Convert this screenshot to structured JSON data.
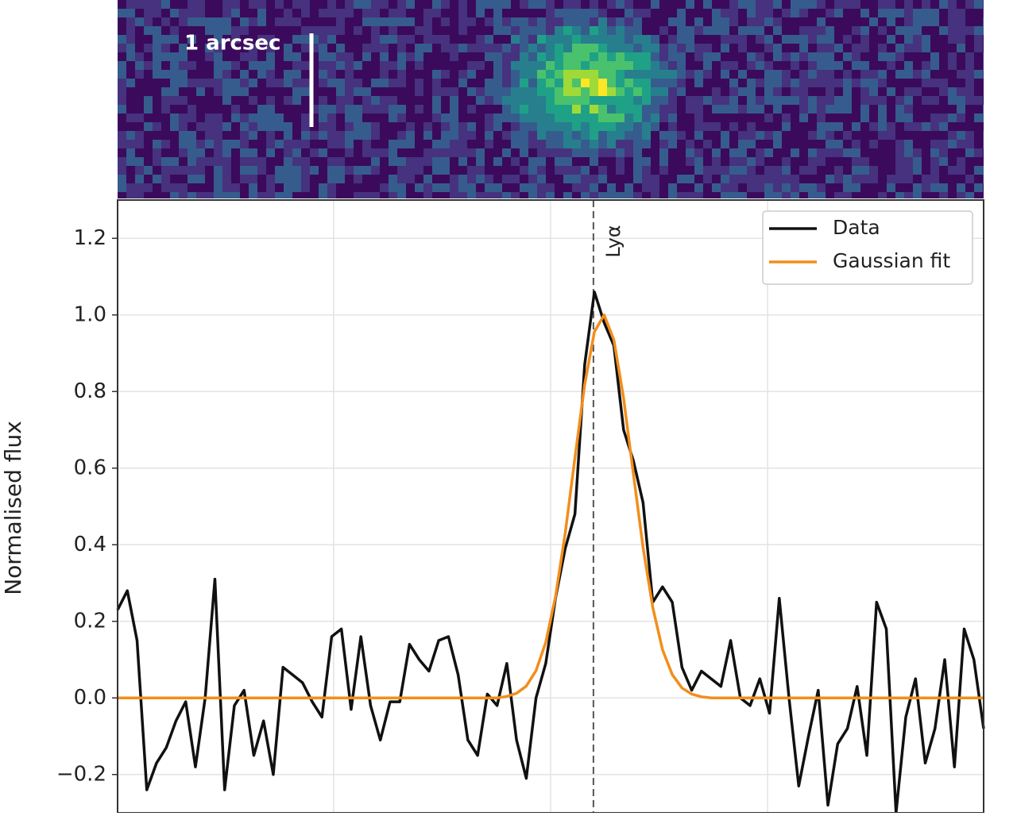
{
  "image": {
    "scale_label": "1 arcsec"
  },
  "chart_data": {
    "type": "line",
    "ylabel": "Normalised flux",
    "xlim": [
      0,
      89
    ],
    "xticks": [
      22.2,
      44.5,
      66.8
    ],
    "ylim": [
      -0.3,
      1.3
    ],
    "yticks": [
      {
        "value": -0.2,
        "label": "−0.2"
      },
      {
        "value": 0,
        "label": "0.0"
      },
      0.2,
      0.4,
      0.6,
      0.8,
      {
        "value": 1,
        "label": "1.0"
      },
      1.2
    ],
    "grid": true,
    "legend": "upper right",
    "vline": {
      "x": 48.9,
      "label": "Lyα",
      "color": "#555555"
    },
    "series": [
      {
        "name": "Data",
        "color": "#111111",
        "values": [
          0.23,
          0.28,
          0.15,
          -0.24,
          -0.17,
          -0.13,
          -0.06,
          -0.01,
          -0.18,
          0.0,
          0.31,
          -0.24,
          -0.02,
          0.02,
          -0.15,
          -0.06,
          -0.2,
          0.08,
          0.06,
          0.04,
          -0.01,
          -0.05,
          0.16,
          0.18,
          -0.03,
          0.16,
          -0.02,
          -0.11,
          -0.01,
          -0.01,
          0.14,
          0.1,
          0.07,
          0.15,
          0.16,
          0.06,
          -0.11,
          -0.15,
          0.01,
          -0.02,
          0.09,
          -0.11,
          -0.21,
          0.0,
          0.09,
          0.26,
          0.39,
          0.48,
          0.87,
          1.06,
          0.98,
          0.92,
          0.7,
          0.62,
          0.51,
          0.25,
          0.29,
          0.25,
          0.08,
          0.02,
          0.07,
          0.05,
          0.03,
          0.15,
          0.0,
          -0.02,
          0.05,
          -0.04,
          0.26,
          0.0,
          -0.23,
          -0.1,
          0.02,
          -0.28,
          -0.12,
          -0.08,
          0.03,
          -0.15,
          0.25,
          0.18,
          -0.3,
          -0.05,
          0.05,
          -0.17,
          -0.08,
          0.1,
          -0.18,
          0.18,
          0.1,
          -0.08
        ]
      },
      {
        "name": "Gaussian fit",
        "color": "#f28e1c",
        "values": [
          0,
          0,
          0,
          0,
          0,
          0,
          0,
          0,
          0,
          0,
          0,
          0,
          0,
          0,
          0,
          0,
          0,
          0,
          0,
          0,
          0,
          0,
          0,
          0,
          0,
          0,
          0,
          0,
          0,
          0,
          0,
          0,
          0,
          0,
          0,
          0,
          0,
          0,
          0,
          0,
          0.004,
          0.012,
          0.031,
          0.071,
          0.145,
          0.264,
          0.43,
          0.627,
          0.818,
          0.956,
          1.0,
          0.935,
          0.783,
          0.586,
          0.393,
          0.236,
          0.126,
          0.061,
          0.026,
          0.01,
          0.003,
          0,
          0,
          0,
          0,
          0,
          0,
          0,
          0,
          0,
          0,
          0,
          0,
          0,
          0,
          0,
          0,
          0,
          0,
          0,
          0,
          0,
          0,
          0,
          0,
          0,
          0,
          0,
          0,
          0
        ]
      }
    ]
  }
}
